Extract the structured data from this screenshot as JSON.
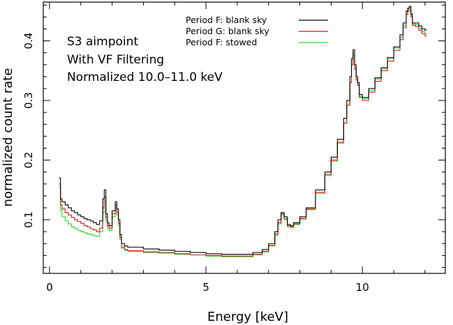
{
  "chart_data": {
    "type": "line",
    "step": true,
    "title": "",
    "xlabel": "Energy [keV]",
    "ylabel": "normalized count rate",
    "xlim": [
      -0.2,
      12.65
    ],
    "ylim": [
      0.01,
      0.465
    ],
    "xticks_major": [
      0,
      5,
      10
    ],
    "xtick_labels": [
      "0",
      "5",
      "10"
    ],
    "yticks_major": [
      0.1,
      0.2,
      0.3,
      0.4
    ],
    "ytick_labels": [
      "0.1",
      "0.2",
      "0.3",
      "0.4"
    ],
    "annotations": [
      "S3 aimpoint",
      "With VF Filtering",
      "Normalized 10.0–11.0 keV"
    ],
    "legend_position": "top-center",
    "x": [
      0.3,
      0.35,
      0.4,
      0.5,
      0.6,
      0.7,
      0.8,
      0.9,
      1.0,
      1.1,
      1.2,
      1.3,
      1.4,
      1.5,
      1.6,
      1.7,
      1.75,
      1.8,
      1.85,
      1.9,
      2.0,
      2.1,
      2.15,
      2.2,
      2.25,
      2.3,
      2.4,
      2.5,
      3.0,
      3.5,
      4.0,
      4.5,
      5.0,
      5.5,
      6.0,
      6.5,
      6.8,
      7.0,
      7.2,
      7.3,
      7.4,
      7.5,
      7.6,
      7.7,
      7.8,
      8.0,
      8.2,
      8.5,
      8.8,
      9.0,
      9.2,
      9.4,
      9.5,
      9.6,
      9.65,
      9.7,
      9.75,
      9.8,
      9.85,
      9.9,
      10.0,
      10.2,
      10.4,
      10.6,
      10.8,
      11.0,
      11.2,
      11.3,
      11.4,
      11.45,
      11.5,
      11.55,
      11.6,
      11.7,
      11.8,
      11.9,
      12.0
    ],
    "series": [
      {
        "name": "Period F: blank sky",
        "color": "#000000",
        "values": [
          0.17,
          0.135,
          0.13,
          0.125,
          0.12,
          0.115,
          0.112,
          0.108,
          0.105,
          0.102,
          0.1,
          0.098,
          0.095,
          0.092,
          0.098,
          0.135,
          0.15,
          0.11,
          0.095,
          0.09,
          0.115,
          0.13,
          0.118,
          0.1,
          0.075,
          0.06,
          0.056,
          0.054,
          0.051,
          0.049,
          0.047,
          0.045,
          0.043,
          0.042,
          0.042,
          0.045,
          0.05,
          0.06,
          0.08,
          0.1,
          0.112,
          0.105,
          0.092,
          0.09,
          0.095,
          0.105,
          0.12,
          0.15,
          0.18,
          0.205,
          0.235,
          0.27,
          0.3,
          0.34,
          0.37,
          0.385,
          0.36,
          0.34,
          0.33,
          0.31,
          0.305,
          0.32,
          0.338,
          0.355,
          0.372,
          0.39,
          0.41,
          0.43,
          0.45,
          0.455,
          0.458,
          0.445,
          0.43,
          0.43,
          0.425,
          0.42,
          0.418
        ]
      },
      {
        "name": "Period G: blank sky",
        "color": "#d41a1a",
        "values": [
          0.16,
          0.125,
          0.118,
          0.112,
          0.108,
          0.104,
          0.1,
          0.097,
          0.094,
          0.09,
          0.088,
          0.085,
          0.083,
          0.08,
          0.086,
          0.12,
          0.138,
          0.104,
          0.09,
          0.086,
          0.11,
          0.125,
          0.112,
          0.094,
          0.07,
          0.054,
          0.05,
          0.048,
          0.046,
          0.045,
          0.043,
          0.041,
          0.04,
          0.039,
          0.039,
          0.042,
          0.047,
          0.057,
          0.076,
          0.095,
          0.11,
          0.102,
          0.09,
          0.088,
          0.093,
          0.102,
          0.118,
          0.146,
          0.176,
          0.2,
          0.23,
          0.262,
          0.292,
          0.33,
          0.36,
          0.375,
          0.352,
          0.334,
          0.325,
          0.305,
          0.3,
          0.314,
          0.332,
          0.35,
          0.366,
          0.384,
          0.402,
          0.422,
          0.444,
          0.45,
          0.452,
          0.44,
          0.426,
          0.424,
          0.418,
          0.412,
          0.408
        ]
      },
      {
        "name": "Period F: stowed",
        "color": "#22dd22",
        "values": [
          0.155,
          0.115,
          0.105,
          0.098,
          0.093,
          0.088,
          0.085,
          0.082,
          0.08,
          0.078,
          0.076,
          0.075,
          0.073,
          0.072,
          0.08,
          0.112,
          0.13,
          0.098,
          0.086,
          0.082,
          0.105,
          0.12,
          0.108,
          0.09,
          0.067,
          0.052,
          0.049,
          0.047,
          0.045,
          0.044,
          0.042,
          0.041,
          0.039,
          0.038,
          0.038,
          0.041,
          0.046,
          0.056,
          0.074,
          0.093,
          0.108,
          0.1,
          0.088,
          0.087,
          0.092,
          0.101,
          0.117,
          0.144,
          0.174,
          0.198,
          0.228,
          0.262,
          0.292,
          0.33,
          0.36,
          0.38,
          0.355,
          0.336,
          0.327,
          0.307,
          0.303,
          0.317,
          0.336,
          0.353,
          0.37,
          0.388,
          0.406,
          0.426,
          0.448,
          0.454,
          0.456,
          0.443,
          0.428,
          0.427,
          0.421,
          0.416,
          0.412
        ]
      }
    ]
  }
}
